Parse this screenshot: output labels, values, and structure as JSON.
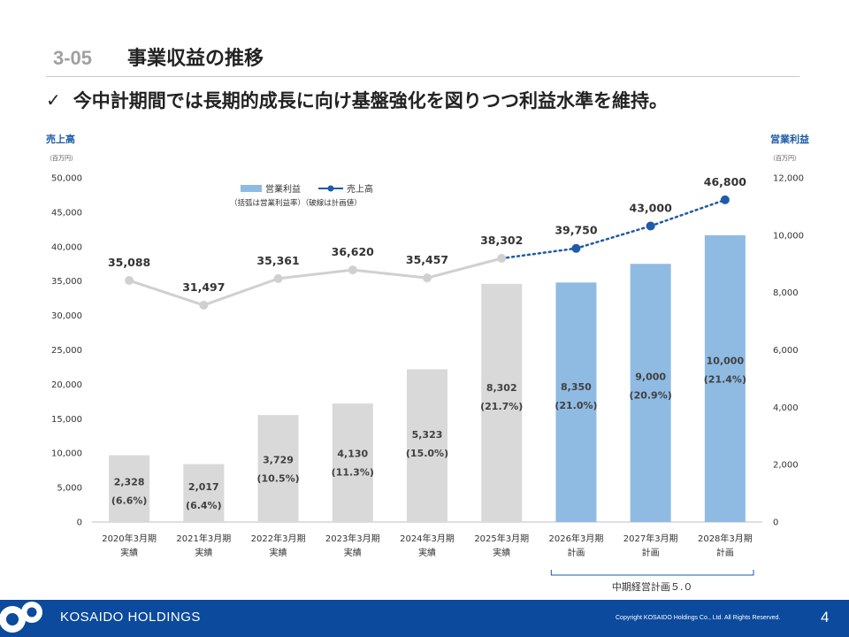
{
  "header": {
    "section_number": "3-05",
    "section_title": "事業収益の推移",
    "checkmark": "✓",
    "headline": "今中計期間では長期的成長に向け基盤強化を図りつつ利益水準を維持。"
  },
  "chart_data": {
    "type": "bar+line",
    "left_axis": {
      "title": "売上高",
      "unit": "（百万円）",
      "min": 0,
      "max": 50000,
      "ticks": [
        "0",
        "5,000",
        "10,000",
        "15,000",
        "20,000",
        "25,000",
        "30,000",
        "35,000",
        "40,000",
        "45,000",
        "50,000"
      ]
    },
    "right_axis": {
      "title": "営業利益",
      "unit": "（百万円）",
      "min": 0,
      "max": 12000,
      "ticks": [
        "0",
        "2,000",
        "4,000",
        "6,000",
        "8,000",
        "10,000",
        "12,000"
      ]
    },
    "categories": [
      [
        "2020年3月期",
        "実績"
      ],
      [
        "2021年3月期",
        "実績"
      ],
      [
        "2022年3月期",
        "実績"
      ],
      [
        "2023年3月期",
        "実績"
      ],
      [
        "2024年3月期",
        "実績"
      ],
      [
        "2025年3月期",
        "実績"
      ],
      [
        "2026年3月期",
        "計画"
      ],
      [
        "2027年3月期",
        "計画"
      ],
      [
        "2028年3月期",
        "計画"
      ]
    ],
    "bar_series": {
      "name": "営業利益",
      "values": [
        2328,
        2017,
        3729,
        4130,
        5323,
        8302,
        8350,
        9000,
        10000
      ],
      "labels": [
        "2,328",
        "2,017",
        "3,729",
        "4,130",
        "5,323",
        "8,302",
        "8,350",
        "9,000",
        "10,000"
      ],
      "margins": [
        "(6.6%)",
        "(6.4%)",
        "(10.5%)",
        "(11.3%)",
        "(15.0%)",
        "(21.7%)",
        "(21.0%)",
        "(20.9%)",
        "(21.4%)"
      ],
      "plan_from_index": 6,
      "color_actual": "#d9d9d9",
      "color_plan": "#8fbbe3"
    },
    "line_series": {
      "name": "売上高",
      "values": [
        35088,
        31497,
        35361,
        36620,
        35457,
        38302,
        39750,
        43000,
        46800
      ],
      "labels": [
        "35,088",
        "31,497",
        "35,361",
        "36,620",
        "35,457",
        "38,302",
        "39,750",
        "43,000",
        "46,800"
      ],
      "plan_from_index": 6,
      "color_actual": "#d0d0d0",
      "color_plan": "#1f5ba8"
    },
    "legend": {
      "bar_label": "営業利益",
      "line_label": "売上高",
      "note": "（括弧は営業利益率）（破線は計画値）",
      "placement": "top-center"
    },
    "bracket_label": "中期経営計画５.０",
    "grid": false
  },
  "footer": {
    "brand": "KOSAIDO HOLDINGS",
    "copyright": "Copyright  KOSAIDO Holdings Co., Ltd. All Rights Reserved.",
    "page": "4"
  },
  "colors": {
    "footer": "#0b4a9c",
    "accent_blue": "#1f5ba8",
    "axis_title": "#1f5ba8"
  }
}
